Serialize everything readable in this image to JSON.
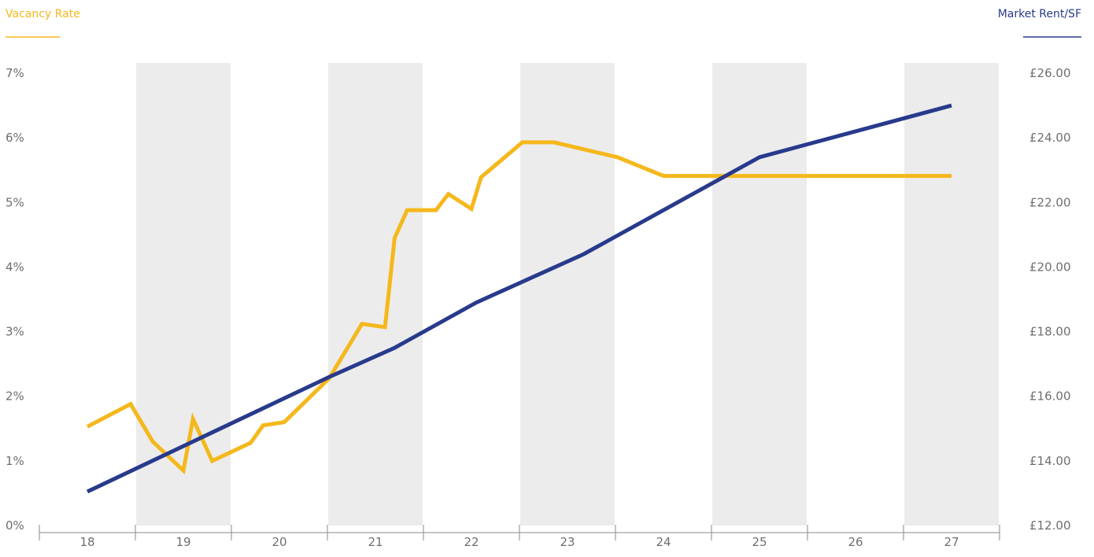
{
  "colors": {
    "vacancy": "#f5b81c",
    "rent": "#283a8c",
    "band": "#ececec",
    "axis": "#8a8a8a",
    "tick_text": "#6e6e6e"
  },
  "chart_data": {
    "type": "line",
    "left_title": "Vacancy Rate",
    "right_title": "Market Rent/SF",
    "x_ticks": [
      "18",
      "19",
      "20",
      "21",
      "22",
      "23",
      "24",
      "25",
      "26",
      "27"
    ],
    "shaded_periods": [
      "19",
      "21",
      "23",
      "25",
      "27"
    ],
    "y_left": {
      "min": 0,
      "max": 7,
      "tick_labels": [
        "0%",
        "1%",
        "2%",
        "3%",
        "4%",
        "5%",
        "6%",
        "7%"
      ]
    },
    "y_right": {
      "min": 12,
      "max": 26,
      "tick_labels": [
        "£12.00",
        "£14.00",
        "£16.00",
        "£18.00",
        "£20.00",
        "£22.00",
        "£24.00",
        "£26.00"
      ]
    },
    "grid": false,
    "series": [
      {
        "name": "Vacancy Rate",
        "axis": "left",
        "color": "#f5b81c",
        "points": [
          [
            18.0,
            1.53
          ],
          [
            18.45,
            1.88
          ],
          [
            18.68,
            1.3
          ],
          [
            19.0,
            0.85
          ],
          [
            19.1,
            1.65
          ],
          [
            19.3,
            1.0
          ],
          [
            19.7,
            1.28
          ],
          [
            19.83,
            1.55
          ],
          [
            20.05,
            1.6
          ],
          [
            20.52,
            2.28
          ],
          [
            20.86,
            3.12
          ],
          [
            21.1,
            3.07
          ],
          [
            21.2,
            4.45
          ],
          [
            21.33,
            4.88
          ],
          [
            21.63,
            4.88
          ],
          [
            21.76,
            5.13
          ],
          [
            22.0,
            4.9
          ],
          [
            22.1,
            5.39
          ],
          [
            22.53,
            5.93
          ],
          [
            22.86,
            5.93
          ],
          [
            23.52,
            5.7
          ],
          [
            24.0,
            5.41
          ],
          [
            25.3,
            5.41
          ],
          [
            27.0,
            5.41
          ]
        ]
      },
      {
        "name": "Market Rent/SF",
        "axis": "right",
        "color": "#283a8c",
        "points": [
          [
            18.0,
            13.05
          ],
          [
            20.52,
            16.6
          ],
          [
            21.2,
            17.5
          ],
          [
            22.05,
            18.9
          ],
          [
            23.17,
            20.4
          ],
          [
            25.0,
            23.4
          ],
          [
            27.0,
            25.0
          ]
        ]
      }
    ]
  }
}
